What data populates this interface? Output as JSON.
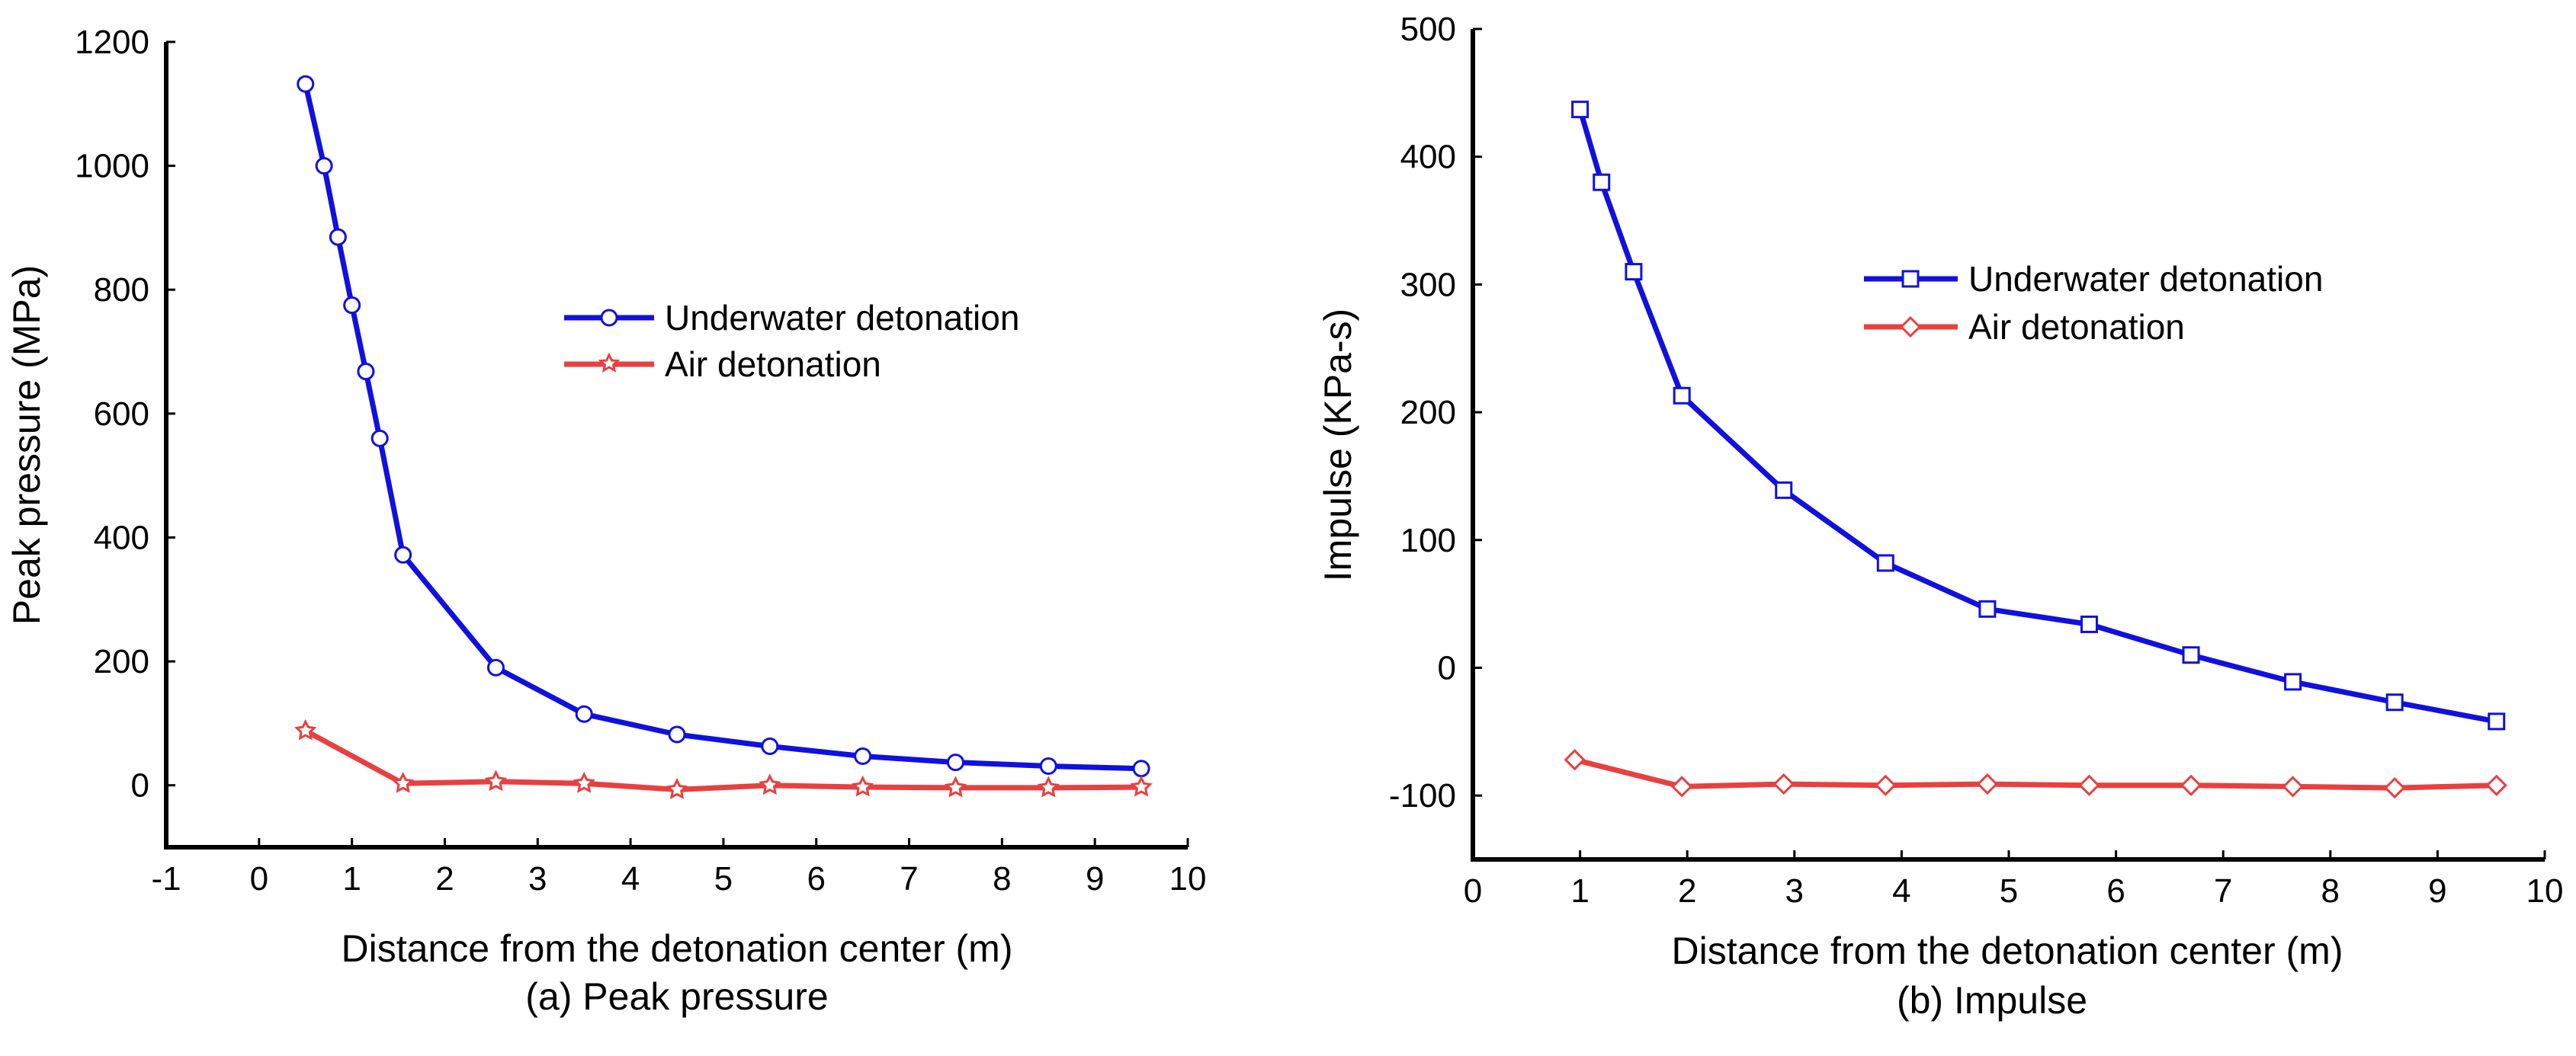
{
  "chart_data": [
    {
      "id": "a",
      "type": "line",
      "title": "",
      "caption": "(a) Peak pressure",
      "xlabel": "Distance from the detonation center (m)",
      "ylabel": "Peak pressure (MPa)",
      "xlim": [
        -1,
        10
      ],
      "ylim": [
        -100,
        1200
      ],
      "xticks": [
        -1,
        0,
        1,
        2,
        3,
        4,
        5,
        6,
        7,
        8,
        9,
        10
      ],
      "yticks": [
        0,
        200,
        400,
        600,
        800,
        1000,
        1200
      ],
      "legend_position": "middle-right",
      "series": [
        {
          "name": "Underwater detonation",
          "color": "#1010e0",
          "marker": "circle",
          "x": [
            0.5,
            0.7,
            0.85,
            1.0,
            1.15,
            1.3,
            1.55,
            2.55,
            3.5,
            4.5,
            5.5,
            6.5,
            7.5,
            8.5,
            9.5
          ],
          "y": [
            1132,
            1000,
            885,
            775,
            668,
            560,
            372,
            190,
            115,
            82,
            63,
            47,
            37,
            31,
            27
          ]
        },
        {
          "name": "Air detonation",
          "color": "#e84040",
          "marker": "star",
          "x": [
            0.5,
            1.55,
            2.55,
            3.5,
            4.5,
            5.5,
            6.5,
            7.5,
            8.5,
            9.5
          ],
          "y": [
            88,
            3,
            6,
            3,
            -7,
            0,
            -3,
            -4,
            -4,
            -3
          ]
        }
      ]
    },
    {
      "id": "b",
      "type": "line",
      "title": "",
      "caption": "(b) Impulse",
      "xlabel": "Distance from the detonation center (m)",
      "ylabel": "Impulse (KPa-s)",
      "xlim": [
        0,
        10
      ],
      "ylim": [
        -150,
        500
      ],
      "xticks": [
        0,
        1,
        2,
        3,
        4,
        5,
        6,
        7,
        8,
        9,
        10
      ],
      "yticks": [
        -100,
        0,
        100,
        200,
        300,
        400,
        500
      ],
      "legend_position": "upper-right",
      "series": [
        {
          "name": "Underwater detonation",
          "color": "#1010e0",
          "marker": "square",
          "x": [
            1.0,
            1.2,
            1.5,
            1.95,
            2.9,
            3.85,
            4.8,
            5.75,
            6.7,
            7.65,
            8.6,
            9.55
          ],
          "y": [
            437,
            380,
            310,
            213,
            139,
            82,
            46,
            34,
            10,
            -11,
            -27,
            -42
          ]
        },
        {
          "name": "Air detonation",
          "color": "#e84040",
          "marker": "diamond",
          "x": [
            0.95,
            1.95,
            2.9,
            3.85,
            4.8,
            5.75,
            6.7,
            7.65,
            8.6,
            9.55
          ],
          "y": [
            -72,
            -93,
            -91,
            -92,
            -91,
            -92,
            -92,
            -93,
            -94,
            -92
          ]
        }
      ]
    }
  ]
}
